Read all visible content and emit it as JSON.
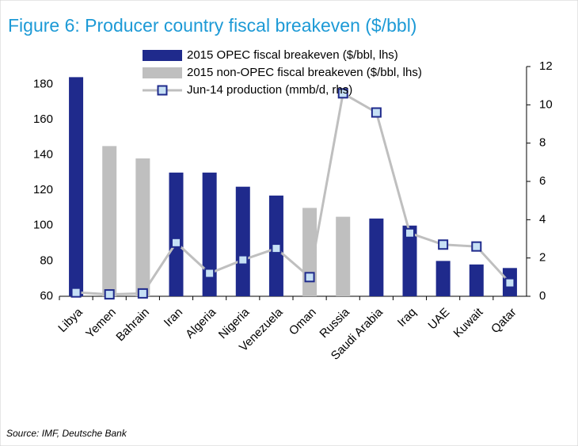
{
  "chart_data": {
    "type": "bar",
    "title": "Figure 6: Producer country fiscal breakeven ($/bbl)",
    "source": "Source: IMF, Deutsche Bank",
    "categories": [
      "Libya",
      "Yemen",
      "Bahrain",
      "Iran",
      "Algeria",
      "Nigeria",
      "Venezuela",
      "Oman",
      "Russia",
      "Saudi Arabia",
      "Iraq",
      "UAE",
      "Kuwait",
      "Qatar"
    ],
    "series": [
      {
        "name": "2015 OPEC fiscal breakeven ($/bbl, lhs)",
        "color": "#1f2a8c",
        "values": [
          184,
          null,
          null,
          130,
          130,
          122,
          117,
          null,
          null,
          104,
          100,
          80,
          78,
          76
        ]
      },
      {
        "name": "2015 non-OPEC fiscal breakeven ($/bbl, lhs)",
        "color": "#bfbfbf",
        "values": [
          null,
          145,
          138,
          null,
          null,
          null,
          null,
          110,
          105,
          null,
          null,
          null,
          null,
          null
        ]
      },
      {
        "name": "Jun-14 production (mmb/d, rhs)",
        "type": "line",
        "axis": "y2",
        "color": "#bfbfbf",
        "marker_color": "#1f2a8c",
        "values": [
          0.2,
          0.1,
          0.15,
          2.8,
          1.2,
          1.9,
          2.5,
          1.0,
          10.6,
          9.6,
          3.3,
          2.7,
          2.6,
          0.7
        ]
      }
    ],
    "ylim": [
      60,
      190
    ],
    "yticks": [
      60,
      80,
      100,
      120,
      140,
      160,
      180
    ],
    "y2lim": [
      0,
      12
    ],
    "y2ticks": [
      0,
      2,
      4,
      6,
      8,
      10,
      12
    ]
  }
}
